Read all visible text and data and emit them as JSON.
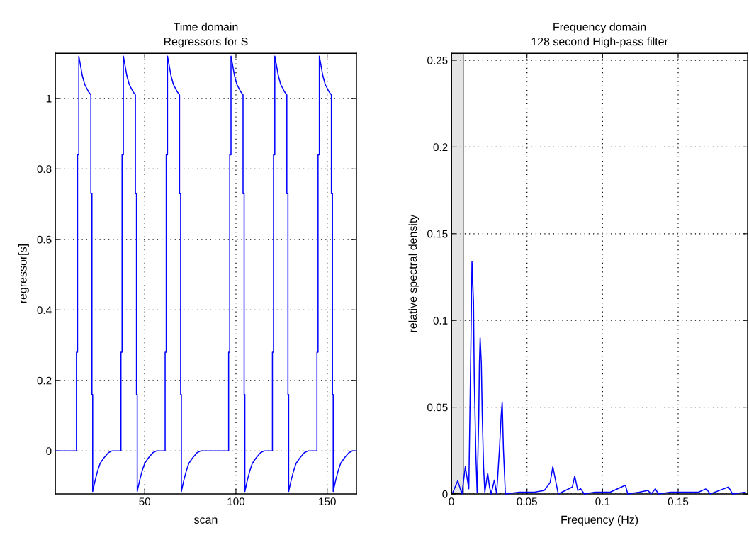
{
  "chart_data": [
    {
      "type": "line",
      "title": "Time domain",
      "subtitle": "Regressors for S",
      "xlabel": "scan",
      "ylabel": "regressor[s]",
      "xlim": [
        1,
        166
      ],
      "xticks": [
        50,
        100,
        150
      ],
      "ylim": [
        -0.122,
        1.128
      ],
      "yticks": [
        0,
        0.2,
        0.4,
        0.6,
        0.8,
        1
      ],
      "grid": true,
      "line_style": "solid",
      "marker": "none",
      "series": [
        {
          "color": "#0000ff",
          "x": [
            1,
            12.6,
            12.6,
            13.2,
            13.2,
            13.9,
            13.9,
            14.6,
            15.8,
            17.1,
            19.1,
            20.5,
            20.5,
            21.1,
            21.1,
            21.5,
            21.5,
            21.7,
            23.0,
            24.3,
            25.6,
            27.6,
            30.1,
            32.0,
            37,
            37,
            37.6,
            37.6,
            38.3,
            38.3,
            39,
            40.2,
            41.5,
            43.5,
            44.9,
            44.9,
            45.5,
            45.5,
            45.9,
            45.9,
            46.1,
            47.4,
            48.7,
            50,
            52,
            54.5,
            56.4,
            61.2,
            61.2,
            61.8,
            61.8,
            62.5,
            62.5,
            63.2,
            64.4,
            65.7,
            67.7,
            69.1,
            69.1,
            69.7,
            69.7,
            70.1,
            70.1,
            70.3,
            71.6,
            72.9,
            74.2,
            76.2,
            78.7,
            80.6,
            96,
            96,
            96.6,
            96.6,
            97.3,
            97.3,
            98,
            99.2,
            100.5,
            102.5,
            103.9,
            103.9,
            104.5,
            104.5,
            104.9,
            104.9,
            105.1,
            106.4,
            107.7,
            109,
            111,
            113.5,
            115.4,
            120,
            120,
            120.6,
            120.6,
            121.3,
            121.3,
            122,
            123.2,
            124.5,
            126.5,
            127.9,
            127.9,
            128.5,
            128.5,
            128.9,
            128.9,
            129.1,
            130.4,
            131.7,
            133,
            135,
            137.5,
            139.4,
            144.4,
            144.4,
            145,
            145,
            145.7,
            145.7,
            146.4,
            147.6,
            148.9,
            150.9,
            152.3,
            152.3,
            152.9,
            152.9,
            153.3,
            153.3,
            153.5,
            154.8,
            156.1,
            157.4,
            159.4,
            161.9,
            163.8,
            166
          ],
          "values": [
            0,
            0,
            0.28,
            0.28,
            0.84,
            0.84,
            1.12,
            1.1,
            1.065,
            1.04,
            1.02,
            1.01,
            0.73,
            0.73,
            0.16,
            0.16,
            -0.115,
            -0.11,
            -0.08,
            -0.055,
            -0.035,
            -0.02,
            -0.005,
            0,
            0,
            0.28,
            0.28,
            0.84,
            0.84,
            1.12,
            1.1,
            1.065,
            1.04,
            1.02,
            1.01,
            0.73,
            0.73,
            0.16,
            0.16,
            -0.115,
            -0.11,
            -0.08,
            -0.055,
            -0.035,
            -0.02,
            -0.005,
            0,
            0,
            0.28,
            0.28,
            0.84,
            0.84,
            1.12,
            1.1,
            1.065,
            1.04,
            1.02,
            1.01,
            0.73,
            0.73,
            0.16,
            0.16,
            -0.115,
            -0.11,
            -0.08,
            -0.055,
            -0.035,
            -0.02,
            -0.005,
            0,
            0,
            0.28,
            0.28,
            0.84,
            0.84,
            1.12,
            1.1,
            1.065,
            1.04,
            1.02,
            1.01,
            0.73,
            0.73,
            0.16,
            0.16,
            -0.115,
            -0.11,
            -0.08,
            -0.055,
            -0.035,
            -0.02,
            -0.005,
            0,
            0,
            0.28,
            0.28,
            0.84,
            0.84,
            1.12,
            1.1,
            1.065,
            1.04,
            1.02,
            1.01,
            0.73,
            0.73,
            0.16,
            0.16,
            -0.115,
            -0.11,
            -0.08,
            -0.055,
            -0.035,
            -0.02,
            -0.005,
            0,
            0,
            0.28,
            0.28,
            0.84,
            0.84,
            1.12,
            1.1,
            1.065,
            1.04,
            1.02,
            1.01,
            0.73,
            0.73,
            0.16,
            0.16,
            -0.115,
            -0.11,
            -0.08,
            -0.055,
            -0.035,
            -0.02,
            -0.005,
            0,
            0
          ]
        }
      ]
    },
    {
      "type": "line",
      "title": "Frequency domain",
      "subtitle": "128 second High-pass filter",
      "xlabel": "Frequency (Hz)",
      "ylabel": "relative spectral density",
      "xlim": [
        0,
        0.196
      ],
      "xticks": [
        0,
        0.05,
        0.1,
        0.15
      ],
      "ylim": [
        0,
        0.254
      ],
      "yticks": [
        0,
        0.05,
        0.1,
        0.15,
        0.2,
        0.25
      ],
      "grid": true,
      "line_style": "solid",
      "marker": "none",
      "bands": [
        {
          "axis": "x",
          "from": 0,
          "to": 0.0078,
          "color": "#e4e4e4"
        }
      ],
      "series": [
        {
          "color": "#0000ff",
          "x": [
            0.001,
            0.0042,
            0.0069,
            0.0092,
            0.0115,
            0.012,
            0.0131,
            0.0136,
            0.0146,
            0.0151,
            0.0162,
            0.017,
            0.0181,
            0.0185,
            0.019,
            0.0198,
            0.0204,
            0.0213,
            0.0221,
            0.024,
            0.0252,
            0.0263,
            0.0284,
            0.0299,
            0.0318,
            0.0329,
            0.0336,
            0.0344,
            0.0357,
            0.045,
            0.055,
            0.0614,
            0.0653,
            0.0671,
            0.0692,
            0.0707,
            0.08,
            0.0816,
            0.0836,
            0.0855,
            0.0879,
            0.095,
            0.105,
            0.1151,
            0.1167,
            0.1243,
            0.13,
            0.1322,
            0.1349,
            0.1369,
            0.145,
            0.155,
            0.1634,
            0.1686,
            0.1712,
            0.1833,
            0.186,
            0.1944
          ],
          "values": [
            0.001,
            0.0076,
            0,
            0.0157,
            0.003,
            0.033,
            0.1,
            0.134,
            0.111,
            0.067,
            0.022,
            0.001,
            0.045,
            0.075,
            0.09,
            0.075,
            0.045,
            0.015,
            0.001,
            0.012,
            0.004,
            0,
            0.008,
            0,
            0.026,
            0.045,
            0.053,
            0.026,
            0,
            0.001,
            0.001,
            0.002,
            0.0065,
            0.0157,
            0.0065,
            0,
            0.004,
            0.0103,
            0.002,
            0.003,
            0,
            0.001,
            0.001,
            0.005,
            0,
            0.001,
            0.002,
            0,
            0.003,
            0,
            0.001,
            0.001,
            0.001,
            0.003,
            0,
            0.004,
            0,
            0.001
          ]
        }
      ]
    }
  ]
}
